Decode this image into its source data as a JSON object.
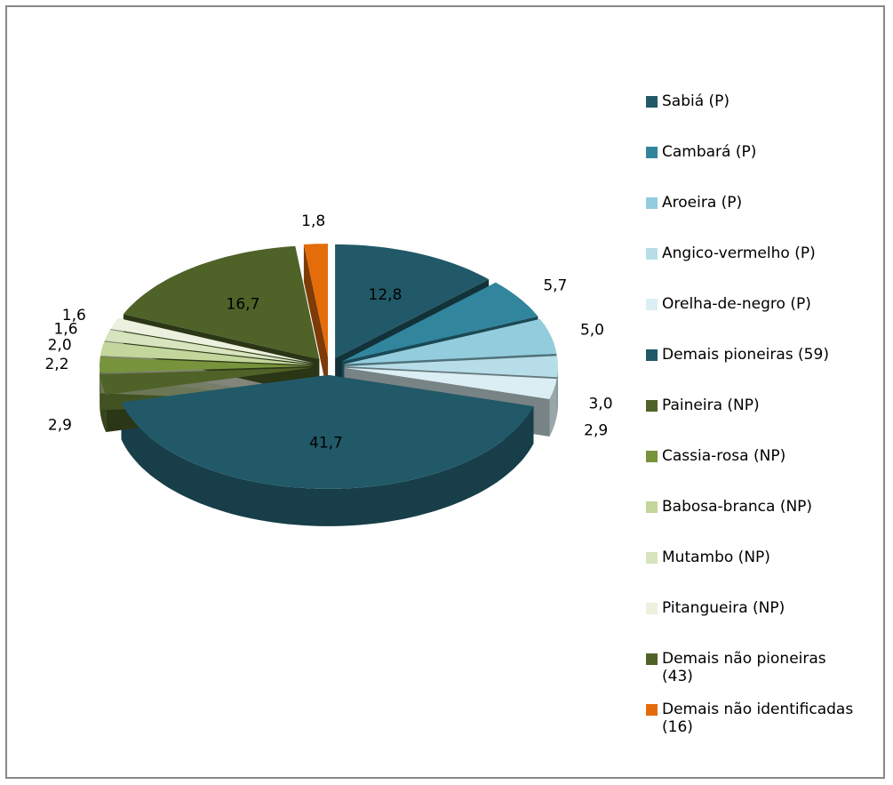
{
  "chart_data": {
    "type": "pie",
    "categories": [
      "Sabiá (P)",
      "Cambará (P)",
      "Aroeira (P)",
      "Angico-vermelho (P)",
      "Orelha-de-negro (P)",
      "Demais pioneiras (59)",
      "Paineira (NP)",
      "Cassia-rosa (NP)",
      "Babosa-branca (NP)",
      "Mutambo (NP)",
      "Pitangueira (NP)",
      "Demais não pioneiras (43)",
      "Demais não identificadas (16)"
    ],
    "values": [
      12.8,
      5.7,
      5.0,
      3.0,
      2.9,
      41.7,
      2.9,
      2.2,
      2.0,
      1.6,
      1.6,
      16.7,
      1.8
    ],
    "value_labels": [
      "12,8",
      "5,7",
      "5,0",
      "3,0",
      "2,9",
      "41,7",
      "2,9",
      "2,2",
      "2,0",
      "1,6",
      "1,6",
      "16,7",
      "1,8"
    ],
    "colors": [
      "#215968",
      "#31859c",
      "#93cddd",
      "#b7dee8",
      "#dbeef4",
      "#215968",
      "#4f6228",
      "#77933c",
      "#c3d69b",
      "#d7e4bd",
      "#ebf1de",
      "#4f6228",
      "#e46c0a"
    ],
    "legend": "right"
  }
}
